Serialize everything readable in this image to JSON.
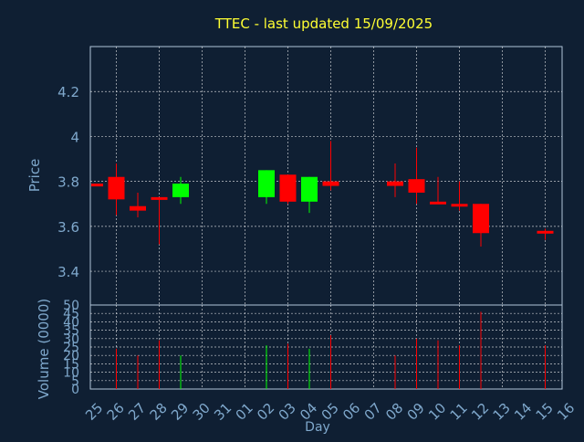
{
  "chart_data": {
    "type": "candlestick",
    "title": "TTEC - last updated 15/09/2025",
    "xlabel": "Day",
    "price_panel": {
      "ylabel": "Price",
      "yticks": [
        "3.4",
        "3.6",
        "3.8",
        "4",
        "4.2"
      ],
      "ylim": [
        3.25,
        4.4
      ],
      "grid": true
    },
    "volume_panel": {
      "ylabel": "Volume (0000)",
      "yticks": [
        "0",
        "5",
        "10",
        "15",
        "20",
        "25",
        "30",
        "35",
        "40",
        "45",
        "50"
      ],
      "ylim": [
        0,
        50
      ],
      "grid": true
    },
    "x_tick_labels": [
      "25",
      "26",
      "27",
      "28",
      "29",
      "30",
      "31",
      "01",
      "02",
      "03",
      "04",
      "05",
      "06",
      "07",
      "08",
      "09",
      "10",
      "11",
      "12",
      "13",
      "14",
      "15",
      "16"
    ],
    "candles": [
      {
        "day": "25",
        "open": 3.79,
        "close": 3.78,
        "high": 3.79,
        "low": 3.78,
        "volume": 0
      },
      {
        "day": "26",
        "open": 3.82,
        "close": 3.72,
        "high": 3.88,
        "low": 3.65,
        "volume": 24
      },
      {
        "day": "27",
        "open": 3.69,
        "close": 3.67,
        "high": 3.75,
        "low": 3.64,
        "volume": 20
      },
      {
        "day": "28",
        "open": 3.73,
        "close": 3.72,
        "high": 3.73,
        "low": 3.52,
        "volume": 29
      },
      {
        "day": "29",
        "open": 3.73,
        "close": 3.79,
        "high": 3.82,
        "low": 3.7,
        "volume": 20
      },
      {
        "day": "02",
        "open": 3.73,
        "close": 3.85,
        "high": 3.85,
        "low": 3.7,
        "volume": 26
      },
      {
        "day": "03",
        "open": 3.83,
        "close": 3.71,
        "high": 3.83,
        "low": 3.7,
        "volume": 27
      },
      {
        "day": "04",
        "open": 3.71,
        "close": 3.82,
        "high": 3.82,
        "low": 3.66,
        "volume": 24
      },
      {
        "day": "05",
        "open": 3.8,
        "close": 3.78,
        "high": 3.98,
        "low": 3.76,
        "volume": 32
      },
      {
        "day": "08",
        "open": 3.8,
        "close": 3.78,
        "high": 3.88,
        "low": 3.73,
        "volume": 20
      },
      {
        "day": "09",
        "open": 3.81,
        "close": 3.75,
        "high": 3.95,
        "low": 3.7,
        "volume": 30
      },
      {
        "day": "10",
        "open": 3.71,
        "close": 3.7,
        "high": 3.82,
        "low": 3.7,
        "volume": 29
      },
      {
        "day": "11",
        "open": 3.7,
        "close": 3.69,
        "high": 3.8,
        "low": 3.67,
        "volume": 26
      },
      {
        "day": "12",
        "open": 3.7,
        "close": 3.57,
        "high": 3.7,
        "low": 3.51,
        "volume": 46
      },
      {
        "day": "15",
        "open": 3.58,
        "close": 3.57,
        "high": 3.59,
        "low": 3.54,
        "volume": 26
      }
    ]
  },
  "colors": {
    "background": "#0f1f33",
    "title": "#ffff33",
    "axis_text": "#7fa8cc",
    "plot_border": "#b0c4d8",
    "grid": "#ffffff",
    "up": "#00ff00",
    "down": "#ff0000"
  }
}
